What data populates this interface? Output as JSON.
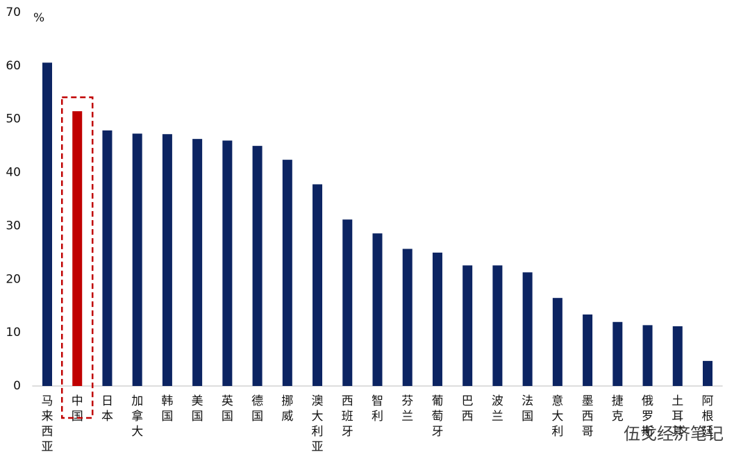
{
  "chart_data": {
    "type": "bar",
    "y_unit": "%",
    "watermark": "伍戈经济笔记",
    "categories": [
      "马来西亚",
      "中国",
      "日本",
      "加拿大",
      "韩国",
      "美国",
      "英国",
      "德国",
      "挪威",
      "澳大利亚",
      "西班牙",
      "智利",
      "芬兰",
      "葡萄牙",
      "巴西",
      "波兰",
      "法国",
      "意大利",
      "墨西哥",
      "捷克",
      "俄罗斯",
      "土耳其",
      "阿根廷"
    ],
    "values": [
      60.6,
      51.5,
      47.9,
      47.3,
      47.2,
      46.3,
      46.0,
      45.0,
      42.4,
      37.8,
      31.2,
      28.6,
      25.7,
      25.0,
      22.6,
      22.6,
      21.3,
      16.5,
      13.4,
      12.0,
      11.4,
      11.2,
      4.7
    ],
    "colors": [
      "#0c2462",
      "#c00000",
      "#0c2462",
      "#0c2462",
      "#0c2462",
      "#0c2462",
      "#0c2462",
      "#0c2462",
      "#0c2462",
      "#0c2462",
      "#0c2462",
      "#0c2462",
      "#0c2462",
      "#0c2462",
      "#0c2462",
      "#0c2462",
      "#0c2462",
      "#0c2462",
      "#0c2462",
      "#0c2462",
      "#0c2462",
      "#0c2462",
      "#0c2462"
    ],
    "ylim": [
      0,
      70
    ],
    "yticks": [
      0,
      10,
      20,
      30,
      40,
      50,
      60,
      70
    ],
    "grid": false
  }
}
